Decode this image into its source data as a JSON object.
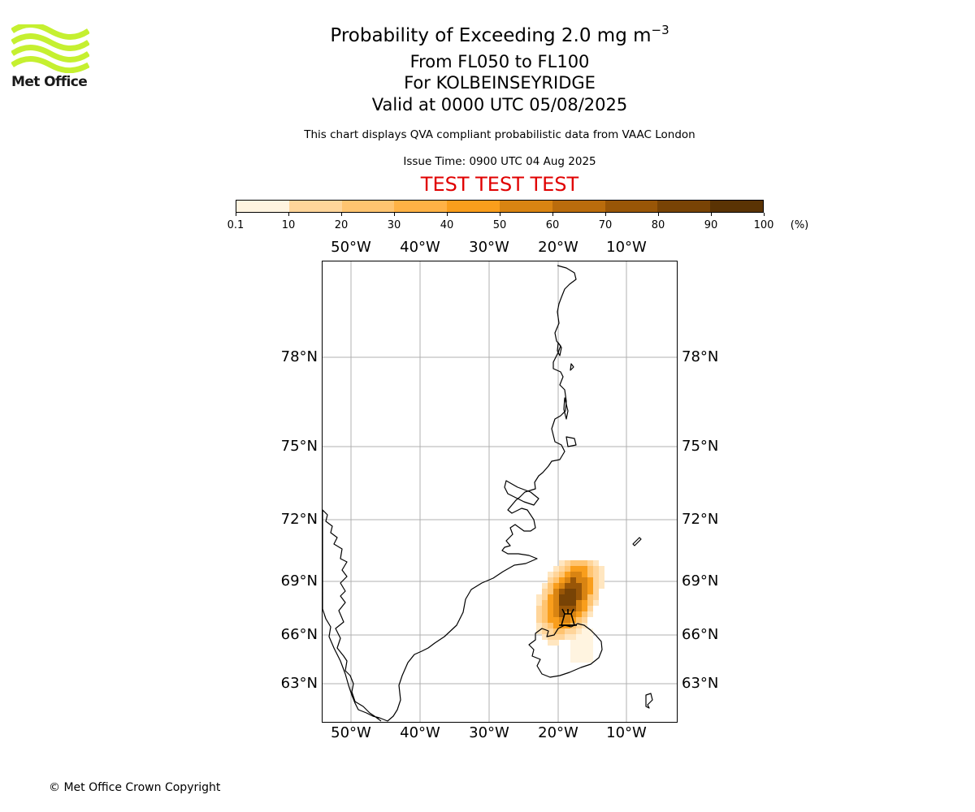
{
  "logo": {
    "name": "Met Office",
    "color": "#c5f030"
  },
  "title": {
    "main_prefix": "Probability of Exceeding 2.0 mg m",
    "main_superscript": "−3",
    "layer": "From FL050 to FL100",
    "location": "For KOLBEINSEYRIDGE",
    "valid": "Valid at 0000 UTC 05/08/2025",
    "description": "This chart displays QVA compliant probabilistic data from VAAC London",
    "issue_time": "Issue Time: 0900 UTC 04 Aug 2025",
    "test_banner": "TEST TEST TEST"
  },
  "colorbar": {
    "ticks": [
      "0.1",
      "10",
      "20",
      "30",
      "40",
      "50",
      "60",
      "70",
      "80",
      "90",
      "100"
    ],
    "unit": "(%)",
    "colors": [
      "#fff4e0",
      "#ffe6c0",
      "#ffd59a",
      "#ffc470",
      "#ffb245",
      "#f99e1c",
      "#d98412",
      "#ba6c0c",
      "#995607",
      "#784305",
      "#5a3304"
    ]
  },
  "map": {
    "lon_labels": [
      "50°W",
      "40°W",
      "30°W",
      "20°W",
      "10°W"
    ],
    "lat_labels": [
      "78°N",
      "75°N",
      "72°N",
      "69°N",
      "66°N",
      "63°N"
    ],
    "lon_values": [
      -50,
      -40,
      -30,
      -20,
      -10
    ],
    "lat_values": [
      78,
      75,
      72,
      69,
      66,
      63
    ],
    "volcano_symbol": "volcano-icon",
    "gridline_color": "#b0b0b0"
  },
  "footer": {
    "copyright": "© Met Office Crown Copyright"
  }
}
